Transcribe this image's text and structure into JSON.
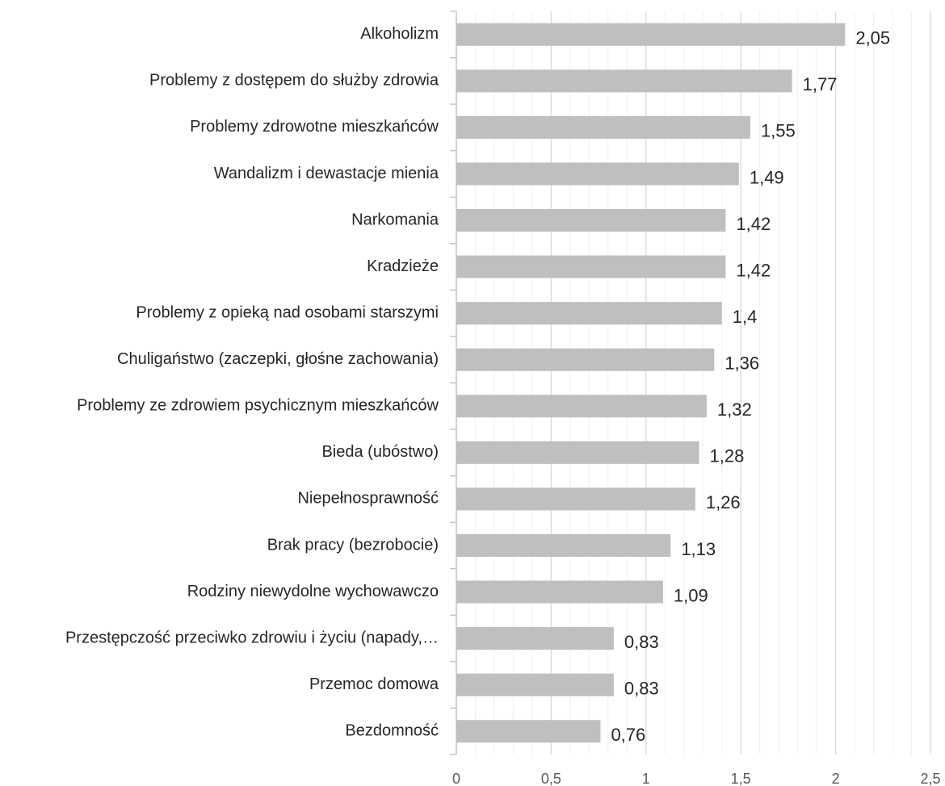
{
  "chart_data": {
    "type": "barh",
    "categories": [
      "Alkoholizm",
      "Problemy z dostępem do służby zdrowia",
      "Problemy zdrowotne mieszkańców",
      "Wandalizm i dewastacje mienia",
      "Narkomania",
      "Kradzieże",
      "Problemy z opieką nad osobami starszymi",
      "Chuligaństwo  (zaczepki, głośne zachowania)",
      "Problemy ze zdrowiem psychicznym mieszkańców",
      "Bieda (ubóstwo)",
      "Niepełnosprawność",
      "Brak pracy (bezrobocie)",
      "Rodziny niewydolne wychowawczo",
      "Przestępczość przeciwko zdrowiu i życiu (napady,…",
      "Przemoc domowa",
      "Bezdomność"
    ],
    "values": [
      2.05,
      1.77,
      1.55,
      1.49,
      1.42,
      1.42,
      1.4,
      1.36,
      1.32,
      1.28,
      1.26,
      1.13,
      1.09,
      0.83,
      0.83,
      0.76
    ],
    "value_labels": [
      "2,05",
      "1,77",
      "1,55",
      "1,49",
      "1,42",
      "1,42",
      "1,4",
      "1,36",
      "1,32",
      "1,28",
      "1,26",
      "1,13",
      "1,09",
      "0,83",
      "0,83",
      "0,76"
    ],
    "color": "#bfbfbf",
    "xlim": [
      0,
      2.5
    ],
    "xticks": [
      0,
      {
        "value": 0.5,
        "label": "0,5"
      },
      1,
      {
        "value": 1.5,
        "label": "1,5"
      },
      2,
      {
        "value": 2.5,
        "label": "2,5"
      }
    ],
    "xticks_minor": [
      0.1,
      0.2,
      0.3,
      0.4,
      0.6,
      0.7,
      0.8,
      0.9,
      1.1,
      1.2,
      1.3,
      1.4,
      1.6,
      1.7,
      1.8,
      1.9,
      2.1,
      2.2,
      2.3,
      2.4
    ],
    "grid": true
  }
}
